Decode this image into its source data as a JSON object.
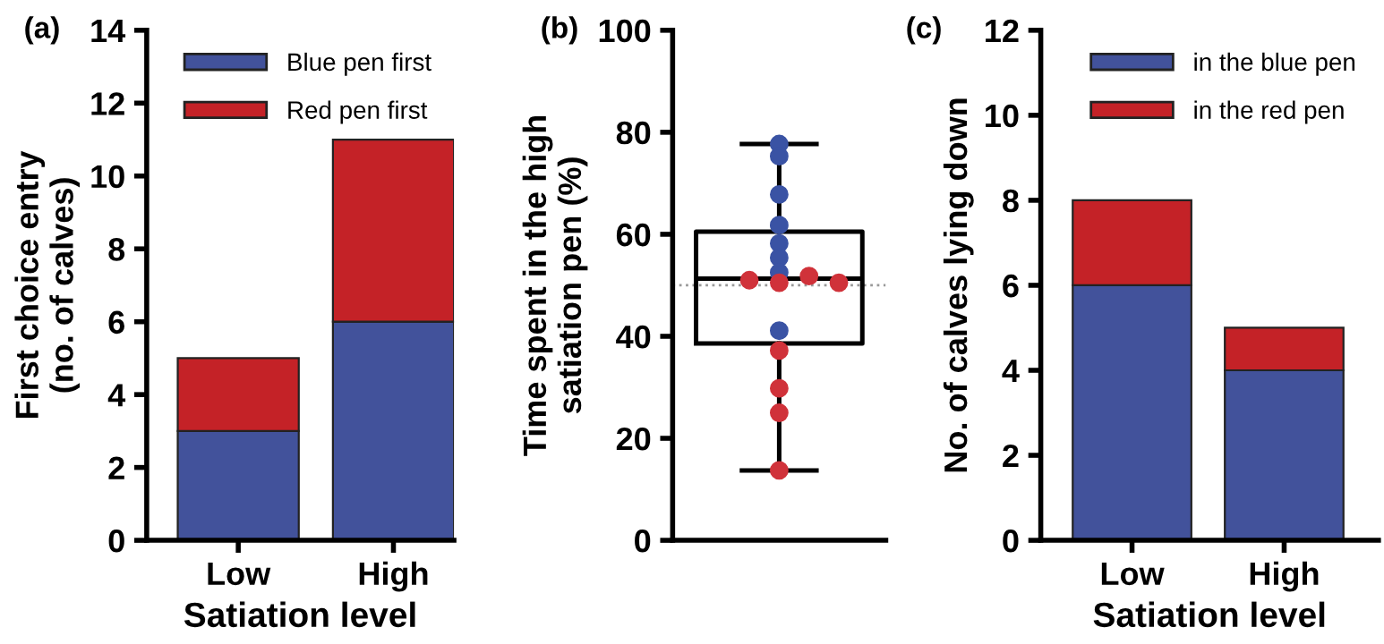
{
  "chart_data": [
    {
      "type": "bar",
      "title": "(a)",
      "xlabel": "Satiation level",
      "ylabel": "First choice entry\n(no. of calves)",
      "categories": [
        "Low",
        "High"
      ],
      "stacked": true,
      "series": [
        {
          "name": "Blue pen first",
          "color": "#42529b",
          "values": [
            3,
            6
          ]
        },
        {
          "name": "Red pen first",
          "color": "#c42227",
          "values": [
            2,
            5
          ]
        }
      ],
      "ylim": [
        0,
        14
      ],
      "yticks": [
        0,
        2,
        4,
        6,
        8,
        10,
        12,
        14
      ],
      "grid": false,
      "legend": "top right"
    },
    {
      "type": "box",
      "title": "(b)",
      "ylabel": "Time spent in the high\nsatiation pen (%)",
      "categories": [
        null
      ],
      "boxes": [
        {
          "low": 13.7,
          "q1": 38.6,
          "median": 51.3,
          "q3": 60.5,
          "high": 77.7
        }
      ],
      "series": [
        {
          "type": "scatter",
          "color": "#3a53a4",
          "x": [
            null,
            null,
            null,
            null,
            null,
            null,
            null,
            null
          ],
          "values": [
            77.7,
            75.3,
            67.8,
            61.8,
            58.2,
            55.4,
            52.5,
            41.1
          ]
        },
        {
          "type": "scatter",
          "color": "#d0323a",
          "x": [
            null,
            null,
            null,
            null,
            null,
            null,
            null,
            null
          ],
          "values": [
            51.8,
            51.0,
            50.5,
            50.5,
            37.2,
            29.8,
            25.0,
            13.7
          ]
        }
      ],
      "ref_lines": [
        {
          "axis": "y",
          "value": 50,
          "color": "#999999",
          "line_style": "dotted"
        }
      ],
      "ylim": [
        0,
        100
      ],
      "yticks": [
        0,
        20,
        40,
        60,
        80,
        100
      ],
      "grid": false,
      "marker": "circle"
    },
    {
      "type": "bar",
      "title": "(c)",
      "xlabel": "Satiation level",
      "ylabel": "No. of calves lying down",
      "categories": [
        "Low",
        "High"
      ],
      "stacked": true,
      "series": [
        {
          "name": "in the blue pen",
          "color": "#42529b",
          "values": [
            6,
            4
          ]
        },
        {
          "name": "in the red pen",
          "color": "#c42227",
          "values": [
            2,
            1
          ]
        }
      ],
      "ylim": [
        0,
        12
      ],
      "yticks": [
        0,
        2,
        4,
        6,
        8,
        10,
        12
      ],
      "grid": false,
      "legend": "top right"
    }
  ]
}
